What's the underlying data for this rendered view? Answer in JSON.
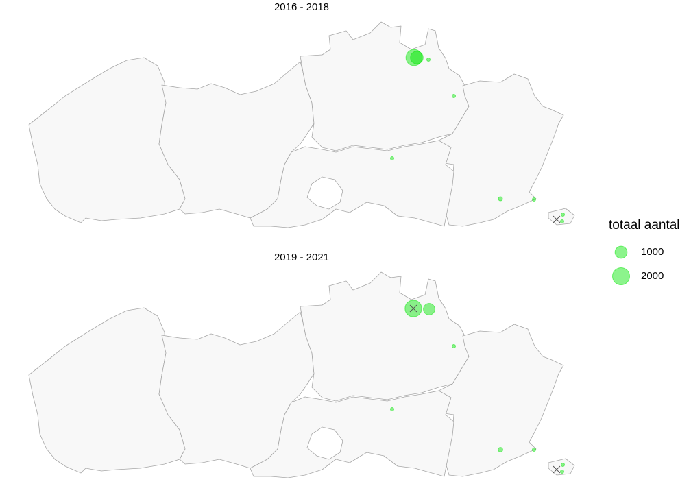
{
  "legend": {
    "title": "totaal aantal",
    "items": [
      {
        "label": "1000",
        "value": 1000
      },
      {
        "label": "2000",
        "value": 2000
      }
    ]
  },
  "colors": {
    "point_fill": "#00e600",
    "point_alpha": 0.45,
    "province_fill": "#f8f8f8",
    "province_stroke": "#a6a6a6"
  },
  "chart_data": [
    {
      "type": "bubble-map",
      "title": "2016 - 2018",
      "points": [
        {
          "value": 1800,
          "cross": false
        },
        {
          "value": 1100,
          "cross": false
        },
        {
          "value": 60,
          "cross": false
        },
        {
          "value": 60,
          "cross": false
        },
        {
          "value": 40,
          "cross": false
        },
        {
          "value": 120,
          "cross": false
        },
        {
          "value": 60,
          "cross": false
        },
        {
          "value": 50,
          "cross": false
        },
        {
          "value": 50,
          "cross": false
        },
        {
          "value": 0,
          "cross": true
        }
      ]
    },
    {
      "type": "bubble-map",
      "title": "2019 - 2021",
      "points": [
        {
          "value": 1900,
          "cross": true
        },
        {
          "value": 900,
          "cross": false
        },
        {
          "value": 40,
          "cross": false
        },
        {
          "value": 40,
          "cross": false
        },
        {
          "value": 150,
          "cross": false
        },
        {
          "value": 60,
          "cross": false
        },
        {
          "value": 50,
          "cross": false
        },
        {
          "value": 50,
          "cross": false
        },
        {
          "value": 0,
          "cross": true
        }
      ]
    }
  ]
}
